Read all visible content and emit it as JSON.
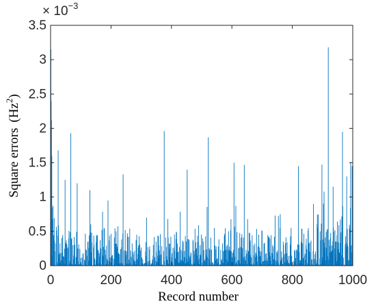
{
  "chart_data": {
    "type": "bar",
    "title": "",
    "xlabel": "Record number",
    "ylabel": "Square errors",
    "ylabel_unit": "(Hz",
    "ylabel_unit_sup": "2",
    "ylabel_unit_close": ")",
    "y_scale_base": "× 10",
    "y_scale_exponent": "−3",
    "xlim": [
      0,
      1000
    ],
    "ylim": [
      0,
      3.5
    ],
    "x_ticks": [
      0,
      200,
      400,
      600,
      800,
      1000
    ],
    "x_tick_labels": [
      "0",
      "200",
      "400",
      "600",
      "800",
      "1000"
    ],
    "y_ticks": [
      0,
      0.5,
      1,
      1.5,
      2,
      2.5,
      3,
      3.5
    ],
    "y_tick_labels": [
      "0",
      "0.5",
      "1",
      "1.5",
      "2",
      "2.5",
      "3",
      "3.5"
    ],
    "grid": false,
    "bar_color": "#0072BD",
    "n_records": 1000,
    "record_spacing": 1,
    "baseline_seed": 7,
    "notable_peaks": [
      {
        "x": 1,
        "y": 3.15
      },
      {
        "x": 2,
        "y": 2.4
      },
      {
        "x": 3,
        "y": 2.12
      },
      {
        "x": 4,
        "y": 1.6
      },
      {
        "x": 25,
        "y": 1.68
      },
      {
        "x": 48,
        "y": 1.25
      },
      {
        "x": 67,
        "y": 1.93
      },
      {
        "x": 88,
        "y": 1.2
      },
      {
        "x": 130,
        "y": 1.1
      },
      {
        "x": 190,
        "y": 0.95
      },
      {
        "x": 240,
        "y": 1.33
      },
      {
        "x": 318,
        "y": 0.7
      },
      {
        "x": 376,
        "y": 1.96
      },
      {
        "x": 452,
        "y": 1.4
      },
      {
        "x": 522,
        "y": 1.87
      },
      {
        "x": 607,
        "y": 1.5
      },
      {
        "x": 641,
        "y": 1.47
      },
      {
        "x": 760,
        "y": 0.75
      },
      {
        "x": 820,
        "y": 1.45
      },
      {
        "x": 870,
        "y": 0.9
      },
      {
        "x": 905,
        "y": 1.08
      },
      {
        "x": 919,
        "y": 3.18
      },
      {
        "x": 935,
        "y": 1.15
      },
      {
        "x": 966,
        "y": 1.95
      },
      {
        "x": 980,
        "y": 1.3
      },
      {
        "x": 993,
        "y": 1.5
      },
      {
        "x": 998,
        "y": 1.45
      }
    ]
  }
}
